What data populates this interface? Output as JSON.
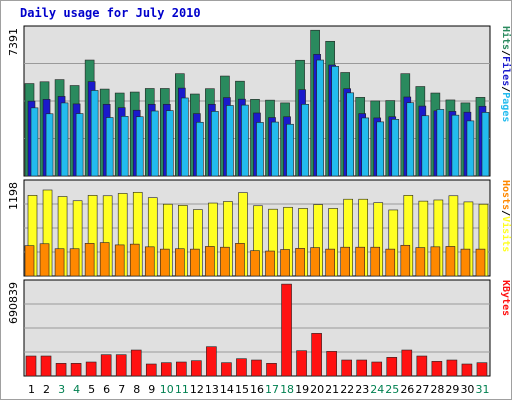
{
  "title": "Daily usage for July 2010",
  "colors": {
    "hits": "#2a8a5e",
    "files": "#1a1acc",
    "pages": "#22bbee",
    "hosts": "#ff8800",
    "visits": "#ffff22",
    "kbytes": "#ff1111",
    "panel_bg": "#e0e0e0",
    "weekend": "#008050",
    "weekday": "#000000"
  },
  "chart_data": [
    {
      "type": "bar",
      "ylabel": "7391",
      "ymax": 7391,
      "categories": [
        "1",
        "2",
        "3",
        "4",
        "5",
        "6",
        "7",
        "8",
        "9",
        "10",
        "11",
        "12",
        "13",
        "14",
        "15",
        "16",
        "17",
        "18",
        "19",
        "20",
        "21",
        "22",
        "23",
        "24",
        "25",
        "26",
        "27",
        "28",
        "29",
        "30",
        "31"
      ],
      "weekend": [
        3,
        4,
        10,
        11,
        17,
        18,
        24,
        25,
        31
      ],
      "legend": [
        {
          "text": "Hits",
          "color": "#2a8a5e"
        },
        {
          "text": "/",
          "color": "#000000"
        },
        {
          "text": "Files",
          "color": "#1a1acc"
        },
        {
          "text": "/",
          "color": "#000000"
        },
        {
          "text": "Pages",
          "color": "#22bbee"
        }
      ],
      "series": [
        {
          "name": "Hits",
          "values": [
            4680,
            4770,
            4880,
            4580,
            5870,
            4400,
            4200,
            4250,
            4430,
            4430,
            5180,
            4150,
            4420,
            5060,
            4800,
            3880,
            3840,
            3700,
            5860,
            7380,
            6820,
            5240,
            3980,
            3800,
            3820,
            5180,
            4530,
            4200,
            3850,
            3700,
            3980
          ]
        },
        {
          "name": "Files",
          "values": [
            3790,
            3880,
            4030,
            3650,
            4780,
            3630,
            3460,
            3330,
            3630,
            3630,
            4450,
            3160,
            3630,
            3970,
            3890,
            3190,
            2960,
            3000,
            4370,
            6160,
            5620,
            4420,
            3160,
            2940,
            3000,
            4000,
            3540,
            3300,
            3270,
            3230,
            3530
          ]
        },
        {
          "name": "Pages",
          "values": [
            3450,
            3150,
            3700,
            3160,
            4330,
            2960,
            3020,
            3000,
            3290,
            3310,
            3950,
            2720,
            3270,
            3570,
            3590,
            2710,
            2730,
            2620,
            3630,
            5870,
            5550,
            4210,
            2940,
            2740,
            2870,
            3710,
            3050,
            3370,
            3080,
            2790,
            3220
          ]
        }
      ]
    },
    {
      "type": "bar",
      "ylabel": "1198",
      "ymax": 1198,
      "legend": [
        {
          "text": "Hosts",
          "color": "#ff8800"
        },
        {
          "text": "/",
          "color": "#000000"
        },
        {
          "text": "Visits",
          "color": "#ffff22"
        }
      ],
      "series": [
        {
          "name": "Hosts",
          "values": [
            395,
            420,
            355,
            355,
            425,
            435,
            405,
            415,
            380,
            350,
            355,
            350,
            385,
            375,
            425,
            330,
            325,
            345,
            360,
            370,
            350,
            375,
            375,
            375,
            350,
            400,
            370,
            380,
            385,
            350,
            350
          ]
        },
        {
          "name": "Visits",
          "values": [
            1050,
            1120,
            1035,
            980,
            1050,
            1045,
            1075,
            1090,
            1020,
            935,
            920,
            865,
            950,
            970,
            1085,
            915,
            870,
            895,
            880,
            930,
            880,
            1000,
            1000,
            955,
            860,
            1050,
            975,
            990,
            1045,
            965,
            935
          ]
        }
      ]
    },
    {
      "type": "bar",
      "ylabel": "690839",
      "ymax": 690839,
      "legend": [
        {
          "text": "KBytes",
          "color": "#ff1111"
        }
      ],
      "series": [
        {
          "name": "KBytes",
          "values": [
            150000,
            150000,
            95000,
            95000,
            105000,
            160000,
            160000,
            195000,
            90000,
            100000,
            105000,
            115000,
            220000,
            100000,
            130000,
            120000,
            95000,
            690000,
            190000,
            320000,
            185000,
            120000,
            120000,
            105000,
            140000,
            195000,
            150000,
            110000,
            120000,
            90000,
            100000
          ]
        }
      ]
    }
  ]
}
